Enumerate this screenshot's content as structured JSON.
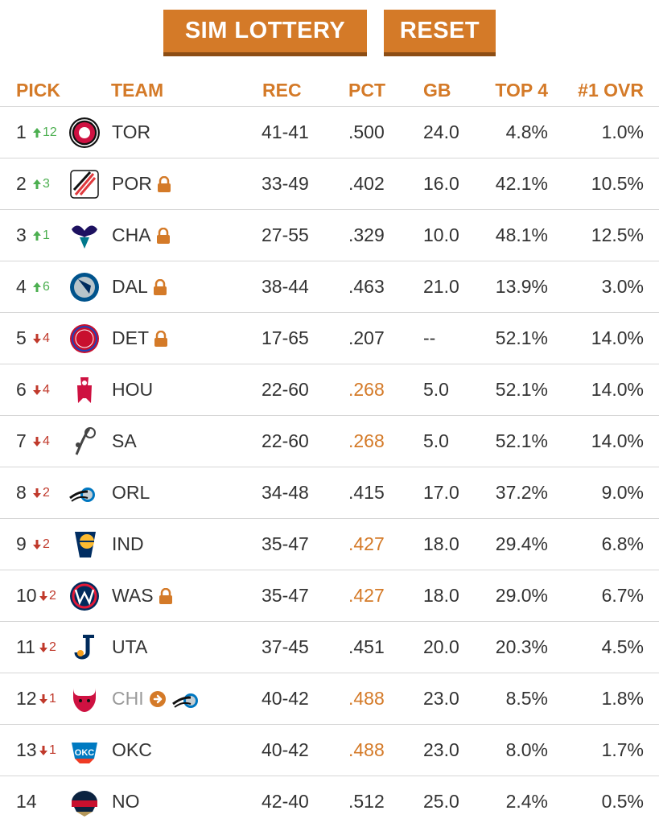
{
  "buttons": {
    "sim": "SIM LOTTERY",
    "reset": "RESET"
  },
  "headers": {
    "pick": "PICK",
    "team": "TEAM",
    "rec": "REC",
    "pct": "PCT",
    "gb": "GB",
    "top4": "TOP 4",
    "ovr": "#1 OVR"
  },
  "colors": {
    "accent": "#d47a28",
    "up": "#4caf50",
    "down": "#c0392b"
  },
  "rows": [
    {
      "pick": "1",
      "dir": "up",
      "move": "12",
      "logo": "raptors-logo-icon",
      "team": "TOR",
      "lock": false,
      "rec": "41-41",
      "pct": ".500",
      "pct_hl": false,
      "gb": "24.0",
      "top4": "4.8%",
      "ovr": "1.0%"
    },
    {
      "pick": "2",
      "dir": "up",
      "move": "3",
      "logo": "blazers-logo-icon",
      "team": "POR",
      "lock": true,
      "rec": "33-49",
      "pct": ".402",
      "pct_hl": false,
      "gb": "16.0",
      "top4": "42.1%",
      "ovr": "10.5%"
    },
    {
      "pick": "3",
      "dir": "up",
      "move": "1",
      "logo": "hornets-logo-icon",
      "team": "CHA",
      "lock": true,
      "rec": "27-55",
      "pct": ".329",
      "pct_hl": false,
      "gb": "10.0",
      "top4": "48.1%",
      "ovr": "12.5%"
    },
    {
      "pick": "4",
      "dir": "up",
      "move": "6",
      "logo": "mavericks-logo-icon",
      "team": "DAL",
      "lock": true,
      "rec": "38-44",
      "pct": ".463",
      "pct_hl": false,
      "gb": "21.0",
      "top4": "13.9%",
      "ovr": "3.0%"
    },
    {
      "pick": "5",
      "dir": "down",
      "move": "4",
      "logo": "pistons-logo-icon",
      "team": "DET",
      "lock": true,
      "rec": "17-65",
      "pct": ".207",
      "pct_hl": false,
      "gb": "--",
      "top4": "52.1%",
      "ovr": "14.0%"
    },
    {
      "pick": "6",
      "dir": "down",
      "move": "4",
      "logo": "rockets-logo-icon",
      "team": "HOU",
      "lock": false,
      "rec": "22-60",
      "pct": ".268",
      "pct_hl": true,
      "gb": "5.0",
      "top4": "52.1%",
      "ovr": "14.0%"
    },
    {
      "pick": "7",
      "dir": "down",
      "move": "4",
      "logo": "spurs-logo-icon",
      "team": "SA",
      "lock": false,
      "rec": "22-60",
      "pct": ".268",
      "pct_hl": true,
      "gb": "5.0",
      "top4": "52.1%",
      "ovr": "14.0%"
    },
    {
      "pick": "8",
      "dir": "down",
      "move": "2",
      "logo": "magic-logo-icon",
      "team": "ORL",
      "lock": false,
      "rec": "34-48",
      "pct": ".415",
      "pct_hl": false,
      "gb": "17.0",
      "top4": "37.2%",
      "ovr": "9.0%"
    },
    {
      "pick": "9",
      "dir": "down",
      "move": "2",
      "logo": "pacers-logo-icon",
      "team": "IND",
      "lock": false,
      "rec": "35-47",
      "pct": ".427",
      "pct_hl": true,
      "gb": "18.0",
      "top4": "29.4%",
      "ovr": "6.8%"
    },
    {
      "pick": "10",
      "dir": "down",
      "move": "2",
      "logo": "wizards-logo-icon",
      "team": "WAS",
      "lock": true,
      "rec": "35-47",
      "pct": ".427",
      "pct_hl": true,
      "gb": "18.0",
      "top4": "29.0%",
      "ovr": "6.7%"
    },
    {
      "pick": "11",
      "dir": "down",
      "move": "2",
      "logo": "jazz-logo-icon",
      "team": "UTA",
      "lock": false,
      "rec": "37-45",
      "pct": ".451",
      "pct_hl": false,
      "gb": "20.0",
      "top4": "20.3%",
      "ovr": "4.5%"
    },
    {
      "pick": "12",
      "dir": "down",
      "move": "1",
      "logo": "bulls-logo-icon",
      "team": "CHI",
      "lock": false,
      "traded_to": "magic-logo-icon",
      "rec": "40-42",
      "pct": ".488",
      "pct_hl": true,
      "gb": "23.0",
      "top4": "8.5%",
      "ovr": "1.8%"
    },
    {
      "pick": "13",
      "dir": "down",
      "move": "1",
      "logo": "thunder-logo-icon",
      "team": "OKC",
      "lock": false,
      "rec": "40-42",
      "pct": ".488",
      "pct_hl": true,
      "gb": "23.0",
      "top4": "8.0%",
      "ovr": "1.7%"
    },
    {
      "pick": "14",
      "dir": "none",
      "move": "",
      "logo": "pelicans-logo-icon",
      "team": "NO",
      "lock": false,
      "rec": "42-40",
      "pct": ".512",
      "pct_hl": false,
      "gb": "25.0",
      "top4": "2.4%",
      "ovr": "0.5%"
    }
  ]
}
